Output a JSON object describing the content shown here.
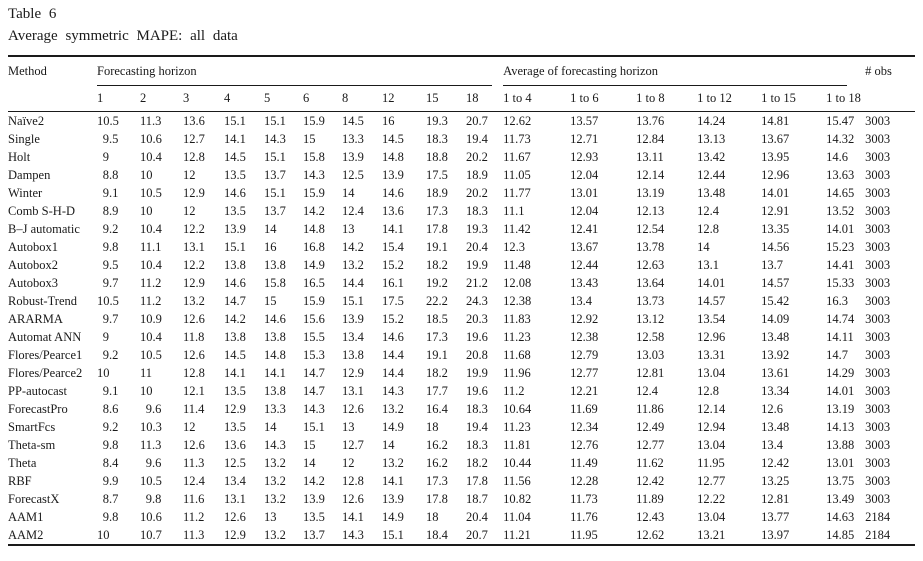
{
  "title": "Table 6",
  "subtitle": "Average symmetric MAPE: all data",
  "table": {
    "method_header": "Method",
    "horizon_group_header": "Forecasting horizon",
    "average_group_header": "Average of forecasting horizon",
    "obs_header": "# obs",
    "horizon_columns": [
      "1",
      "2",
      "3",
      "4",
      "5",
      "6",
      "8",
      "12",
      "15",
      "18"
    ],
    "average_columns": [
      "1 to 4",
      "1 to 6",
      "1 to 8",
      "1 to 12",
      "1 to 15",
      "1 to 18"
    ],
    "rows": [
      {
        "method": "Naïve2",
        "horizons": [
          "10.5",
          "11.3",
          "13.6",
          "15.1",
          "15.1",
          "15.9",
          "14.5",
          "16",
          "19.3",
          "20.7"
        ],
        "averages": [
          "12.62",
          "13.57",
          "13.76",
          "14.24",
          "14.81",
          "15.47"
        ],
        "obs": "3003"
      },
      {
        "method": "Single",
        "horizons": [
          "9.5",
          "10.6",
          "12.7",
          "14.1",
          "14.3",
          "15",
          "13.3",
          "14.5",
          "18.3",
          "19.4"
        ],
        "averages": [
          "11.73",
          "12.71",
          "12.84",
          "13.13",
          "13.67",
          "14.32"
        ],
        "obs": "3003"
      },
      {
        "method": "Holt",
        "horizons": [
          "9",
          "10.4",
          "12.8",
          "14.5",
          "15.1",
          "15.8",
          "13.9",
          "14.8",
          "18.8",
          "20.2"
        ],
        "averages": [
          "11.67",
          "12.93",
          "13.11",
          "13.42",
          "13.95",
          "14.6"
        ],
        "obs": "3003"
      },
      {
        "method": "Dampen",
        "horizons": [
          "8.8",
          "10",
          "12",
          "13.5",
          "13.7",
          "14.3",
          "12.5",
          "13.9",
          "17.5",
          "18.9"
        ],
        "averages": [
          "11.05",
          "12.04",
          "12.14",
          "12.44",
          "12.96",
          "13.63"
        ],
        "obs": "3003"
      },
      {
        "method": "Winter",
        "horizons": [
          "9.1",
          "10.5",
          "12.9",
          "14.6",
          "15.1",
          "15.9",
          "14",
          "14.6",
          "18.9",
          "20.2"
        ],
        "averages": [
          "11.77",
          "13.01",
          "13.19",
          "13.48",
          "14.01",
          "14.65"
        ],
        "obs": "3003"
      },
      {
        "method": "Comb S-H-D",
        "horizons": [
          "8.9",
          "10",
          "12",
          "13.5",
          "13.7",
          "14.2",
          "12.4",
          "13.6",
          "17.3",
          "18.3"
        ],
        "averages": [
          "11.1",
          "12.04",
          "12.13",
          "12.4",
          "12.91",
          "13.52"
        ],
        "obs": "3003"
      },
      {
        "method": "B–J automatic",
        "horizons": [
          "9.2",
          "10.4",
          "12.2",
          "13.9",
          "14",
          "14.8",
          "13",
          "14.1",
          "17.8",
          "19.3"
        ],
        "averages": [
          "11.42",
          "12.41",
          "12.54",
          "12.8",
          "13.35",
          "14.01"
        ],
        "obs": "3003"
      },
      {
        "method": "Autobox1",
        "horizons": [
          "9.8",
          "11.1",
          "13.1",
          "15.1",
          "16",
          "16.8",
          "14.2",
          "15.4",
          "19.1",
          "20.4"
        ],
        "averages": [
          "12.3",
          "13.67",
          "13.78",
          "14",
          "14.56",
          "15.23"
        ],
        "obs": "3003"
      },
      {
        "method": "Autobox2",
        "horizons": [
          "9.5",
          "10.4",
          "12.2",
          "13.8",
          "13.8",
          "14.9",
          "13.2",
          "15.2",
          "18.2",
          "19.9"
        ],
        "averages": [
          "11.48",
          "12.44",
          "12.63",
          "13.1",
          "13.7",
          "14.41"
        ],
        "obs": "3003"
      },
      {
        "method": "Autobox3",
        "horizons": [
          "9.7",
          "11.2",
          "12.9",
          "14.6",
          "15.8",
          "16.5",
          "14.4",
          "16.1",
          "19.2",
          "21.2"
        ],
        "averages": [
          "12.08",
          "13.43",
          "13.64",
          "14.01",
          "14.57",
          "15.33"
        ],
        "obs": "3003"
      },
      {
        "method": "Robust-Trend",
        "horizons": [
          "10.5",
          "11.2",
          "13.2",
          "14.7",
          "15",
          "15.9",
          "15.1",
          "17.5",
          "22.2",
          "24.3"
        ],
        "averages": [
          "12.38",
          "13.4",
          "13.73",
          "14.57",
          "15.42",
          "16.3"
        ],
        "obs": "3003"
      },
      {
        "method": "ARARMA",
        "horizons": [
          "9.7",
          "10.9",
          "12.6",
          "14.2",
          "14.6",
          "15.6",
          "13.9",
          "15.2",
          "18.5",
          "20.3"
        ],
        "averages": [
          "11.83",
          "12.92",
          "13.12",
          "13.54",
          "14.09",
          "14.74"
        ],
        "obs": "3003"
      },
      {
        "method": "Automat ANN",
        "horizons": [
          "9",
          "10.4",
          "11.8",
          "13.8",
          "13.8",
          "15.5",
          "13.4",
          "14.6",
          "17.3",
          "19.6"
        ],
        "averages": [
          "11.23",
          "12.38",
          "12.58",
          "12.96",
          "13.48",
          "14.11"
        ],
        "obs": "3003"
      },
      {
        "method": "Flores/Pearce1",
        "horizons": [
          "9.2",
          "10.5",
          "12.6",
          "14.5",
          "14.8",
          "15.3",
          "13.8",
          "14.4",
          "19.1",
          "20.8"
        ],
        "averages": [
          "11.68",
          "12.79",
          "13.03",
          "13.31",
          "13.92",
          "14.7"
        ],
        "obs": "3003"
      },
      {
        "method": "Flores/Pearce2",
        "horizons": [
          "10",
          "11",
          "12.8",
          "14.1",
          "14.1",
          "14.7",
          "12.9",
          "14.4",
          "18.2",
          "19.9"
        ],
        "averages": [
          "11.96",
          "12.77",
          "12.81",
          "13.04",
          "13.61",
          "14.29"
        ],
        "obs": "3003"
      },
      {
        "method": "PP-autocast",
        "horizons": [
          "9.1",
          "10",
          "12.1",
          "13.5",
          "13.8",
          "14.7",
          "13.1",
          "14.3",
          "17.7",
          "19.6"
        ],
        "averages": [
          "11.2",
          "12.21",
          "12.4",
          "12.8",
          "13.34",
          "14.01"
        ],
        "obs": "3003"
      },
      {
        "method": "ForecastPro",
        "horizons": [
          "8.6",
          "9.6",
          "11.4",
          "12.9",
          "13.3",
          "14.3",
          "12.6",
          "13.2",
          "16.4",
          "18.3"
        ],
        "averages": [
          "10.64",
          "11.69",
          "11.86",
          "12.14",
          "12.6",
          "13.19"
        ],
        "obs": "3003"
      },
      {
        "method": "SmartFcs",
        "horizons": [
          "9.2",
          "10.3",
          "12",
          "13.5",
          "14",
          "15.1",
          "13",
          "14.9",
          "18",
          "19.4"
        ],
        "averages": [
          "11.23",
          "12.34",
          "12.49",
          "12.94",
          "13.48",
          "14.13"
        ],
        "obs": "3003"
      },
      {
        "method": "Theta-sm",
        "horizons": [
          "9.8",
          "11.3",
          "12.6",
          "13.6",
          "14.3",
          "15",
          "12.7",
          "14",
          "16.2",
          "18.3"
        ],
        "averages": [
          "11.81",
          "12.76",
          "12.77",
          "13.04",
          "13.4",
          "13.88"
        ],
        "obs": "3003"
      },
      {
        "method": "Theta",
        "horizons": [
          "8.4",
          "9.6",
          "11.3",
          "12.5",
          "13.2",
          "14",
          "12",
          "13.2",
          "16.2",
          "18.2"
        ],
        "averages": [
          "10.44",
          "11.49",
          "11.62",
          "11.95",
          "12.42",
          "13.01"
        ],
        "obs": "3003"
      },
      {
        "method": "RBF",
        "horizons": [
          "9.9",
          "10.5",
          "12.4",
          "13.4",
          "13.2",
          "14.2",
          "12.8",
          "14.1",
          "17.3",
          "17.8"
        ],
        "averages": [
          "11.56",
          "12.28",
          "12.42",
          "12.77",
          "13.25",
          "13.75"
        ],
        "obs": "3003"
      },
      {
        "method": "ForecastX",
        "horizons": [
          "8.7",
          "9.8",
          "11.6",
          "13.1",
          "13.2",
          "13.9",
          "12.6",
          "13.9",
          "17.8",
          "18.7"
        ],
        "averages": [
          "10.82",
          "11.73",
          "11.89",
          "12.22",
          "12.81",
          "13.49"
        ],
        "obs": "3003"
      },
      {
        "method": "AAM1",
        "horizons": [
          "9.8",
          "10.6",
          "11.2",
          "12.6",
          "13",
          "13.5",
          "14.1",
          "14.9",
          "18",
          "20.4"
        ],
        "averages": [
          "11.04",
          "11.76",
          "12.43",
          "13.04",
          "13.77",
          "14.63"
        ],
        "obs": "2184"
      },
      {
        "method": "AAM2",
        "horizons": [
          "10",
          "10.7",
          "11.3",
          "12.9",
          "13.2",
          "13.7",
          "14.3",
          "15.1",
          "18.4",
          "20.7"
        ],
        "averages": [
          "11.21",
          "11.95",
          "12.62",
          "13.21",
          "13.97",
          "14.85"
        ],
        "obs": "2184"
      }
    ]
  }
}
